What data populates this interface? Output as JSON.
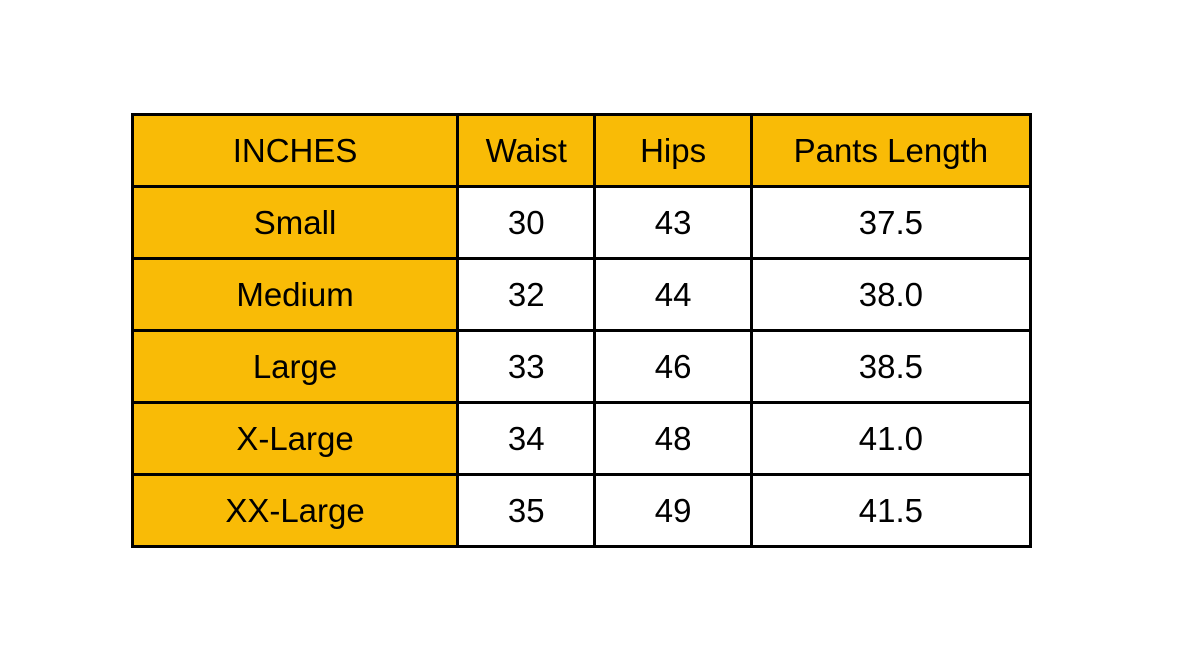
{
  "table": {
    "unit_label": "INCHES",
    "column_headers": {
      "waist": "Waist",
      "hips": "Hips",
      "pants_length": "Pants Length"
    },
    "rows": [
      {
        "size": "Small",
        "waist": "30",
        "hips": "43",
        "pants_length": "37.5"
      },
      {
        "size": "Medium",
        "waist": "32",
        "hips": "44",
        "pants_length": "38.0"
      },
      {
        "size": "Large",
        "waist": "33",
        "hips": "46",
        "pants_length": "38.5"
      },
      {
        "size": "X-Large",
        "waist": "34",
        "hips": "48",
        "pants_length": "41.0"
      },
      {
        "size": "XX-Large",
        "waist": "35",
        "hips": "49",
        "pants_length": "41.5"
      }
    ],
    "colors": {
      "header_background": "#F9BB06",
      "cell_background": "#FFFFFF",
      "border": "#000000",
      "text": "#000000"
    }
  },
  "chart_data": {
    "type": "table",
    "title": "",
    "unit": "INCHES",
    "columns": [
      "INCHES",
      "Waist",
      "Hips",
      "Pants Length"
    ],
    "rows": [
      [
        "Small",
        "30",
        "43",
        "37.5"
      ],
      [
        "Medium",
        "32",
        "44",
        "38.0"
      ],
      [
        "Large",
        "33",
        "46",
        "38.5"
      ],
      [
        "X-Large",
        "34",
        "48",
        "41.0"
      ],
      [
        "XX-Large",
        "35",
        "49",
        "41.5"
      ]
    ]
  }
}
